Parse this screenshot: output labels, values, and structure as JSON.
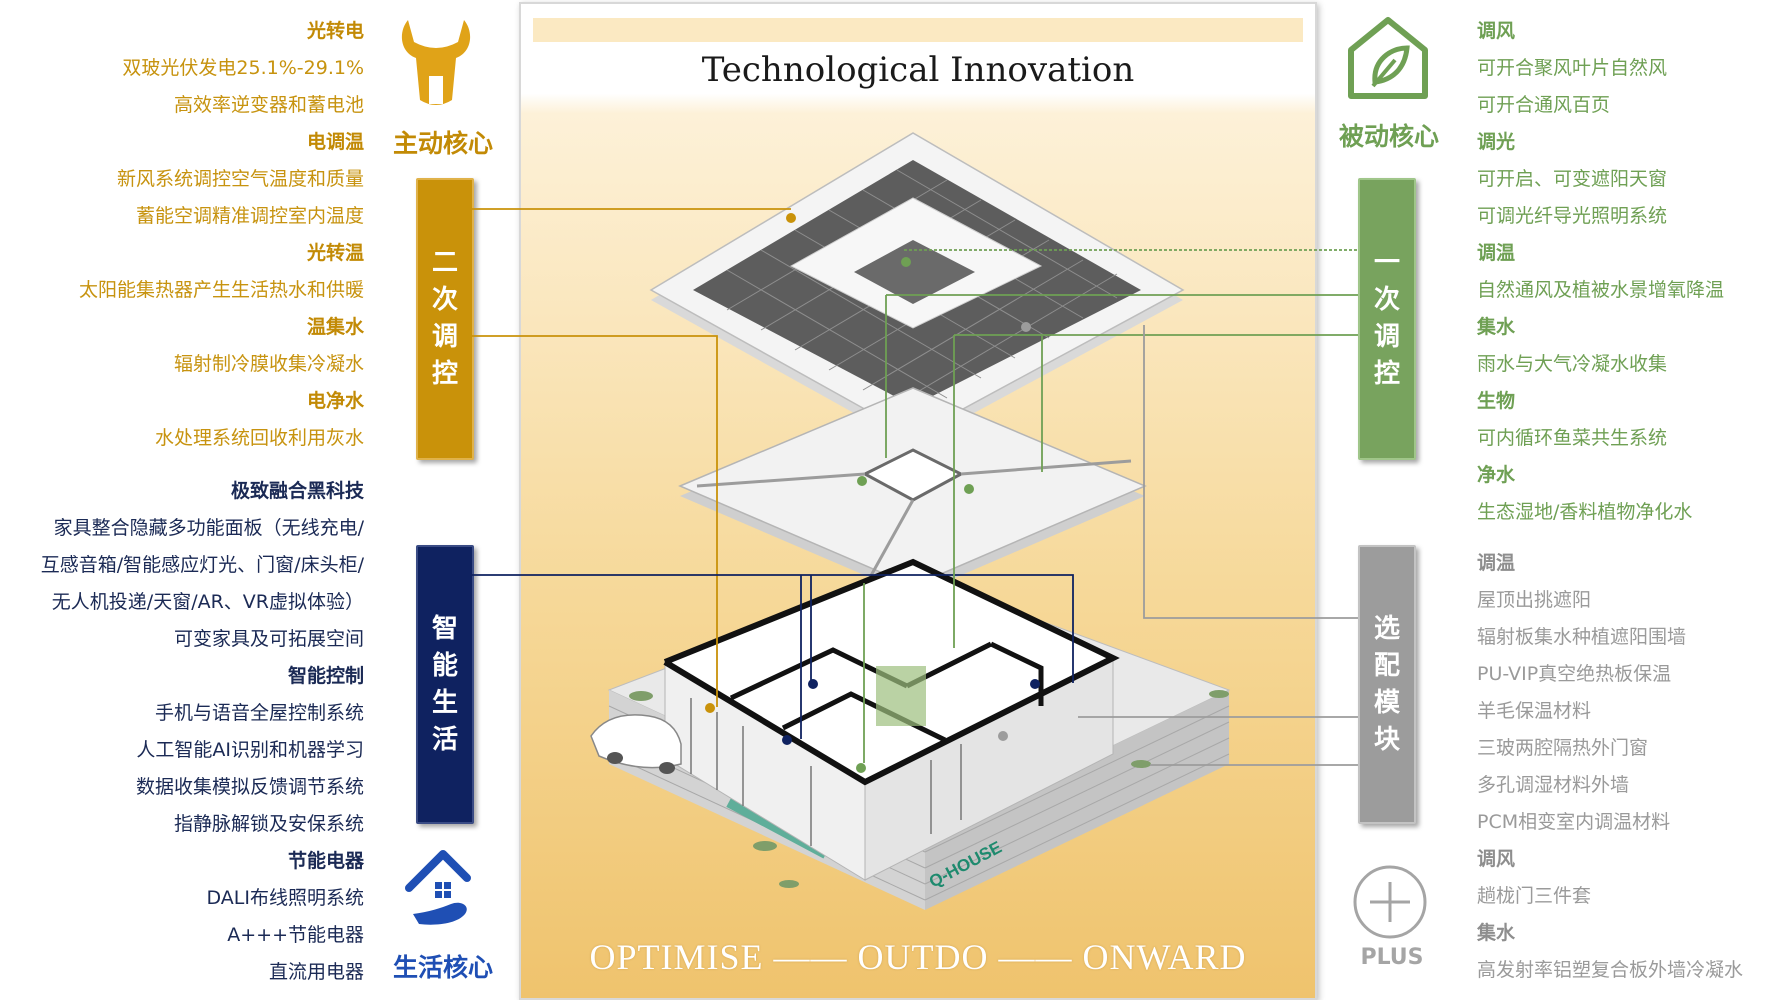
{
  "panel": {
    "title": "Technological Innovation",
    "footer": "OPTIMISE —— OUTDO —— ONWARD"
  },
  "cores": {
    "active": "主动核心",
    "passive": "被动核心",
    "life": "生活核心",
    "plus": "PLUS"
  },
  "bars": {
    "secondary": [
      "二",
      "次",
      "调",
      "控"
    ],
    "smart": [
      "智",
      "能",
      "生",
      "活"
    ],
    "primary": [
      "一",
      "次",
      "调",
      "控"
    ],
    "optional": [
      "选",
      "配",
      "模",
      "块"
    ]
  },
  "left_items": [
    {
      "text": "光转电",
      "style": "gold-h"
    },
    {
      "text": "双玻光伏发电25.1%-29.1%",
      "style": "gold"
    },
    {
      "text": "高效率逆变器和蓄电池",
      "style": "gold"
    },
    {
      "text": "电调温",
      "style": "gold-h"
    },
    {
      "text": "新风系统调控空气温度和质量",
      "style": "gold"
    },
    {
      "text": "蓄能空调精准调控室内温度",
      "style": "gold"
    },
    {
      "text": "光转温",
      "style": "gold-h"
    },
    {
      "text": "太阳能集热器产生生活热水和供暖",
      "style": "gold"
    },
    {
      "text": "温集水",
      "style": "gold-h"
    },
    {
      "text": "辐射制冷膜收集冷凝水",
      "style": "gold"
    },
    {
      "text": "电净水",
      "style": "gold-h"
    },
    {
      "text": "水处理系统回收利用灰水",
      "style": "gold"
    },
    {
      "text": "极致融合黑科技",
      "style": "navy-h"
    },
    {
      "text": "家具整合隐藏多功能面板（无线充电/",
      "style": "navy"
    },
    {
      "text": "互感音箱/智能感应灯光、门窗/床头柜/",
      "style": "navy"
    },
    {
      "text": "无人机投递/天窗/AR、VR虚拟体验）",
      "style": "navy"
    },
    {
      "text": "可变家具及可拓展空间",
      "style": "navy"
    },
    {
      "text": "智能控制",
      "style": "navy-h"
    },
    {
      "text": "手机与语音全屋控制系统",
      "style": "navy"
    },
    {
      "text": "人工智能AI识别和机器学习",
      "style": "navy"
    },
    {
      "text": "数据收集模拟反馈调节系统",
      "style": "navy"
    },
    {
      "text": "指静脉解锁及安保系统",
      "style": "navy"
    },
    {
      "text": "节能电器",
      "style": "navy-h"
    },
    {
      "text": "DALI布线照明系统",
      "style": "navy"
    },
    {
      "text": "A+++节能电器",
      "style": "navy"
    },
    {
      "text": "直流用电器",
      "style": "navy"
    }
  ],
  "right_items": [
    {
      "text": "调风",
      "style": "green-h"
    },
    {
      "text": "可开合聚风叶片自然风",
      "style": "green"
    },
    {
      "text": "可开合通风百页",
      "style": "green"
    },
    {
      "text": "调光",
      "style": "green-h"
    },
    {
      "text": "可开启、可变遮阳天窗",
      "style": "green"
    },
    {
      "text": "可调光纤导光照明系统",
      "style": "green"
    },
    {
      "text": "调温",
      "style": "green-h"
    },
    {
      "text": "自然通风及植被水景增氧降温",
      "style": "green"
    },
    {
      "text": "集水",
      "style": "green-h"
    },
    {
      "text": "雨水与大气冷凝水收集",
      "style": "green"
    },
    {
      "text": "生物",
      "style": "green-h"
    },
    {
      "text": "可内循环鱼菜共生系统",
      "style": "green"
    },
    {
      "text": "净水",
      "style": "green-h"
    },
    {
      "text": "生态湿地/香料植物净化水",
      "style": "green"
    },
    {
      "text": "调温",
      "style": "grey-h"
    },
    {
      "text": "屋顶出挑遮阳",
      "style": "grey"
    },
    {
      "text": "辐射板集水种植遮阳围墙",
      "style": "grey"
    },
    {
      "text": "PU-VIP真空绝热板保温",
      "style": "grey"
    },
    {
      "text": "羊毛保温材料",
      "style": "grey"
    },
    {
      "text": "三玻两腔隔热外门窗",
      "style": "grey"
    },
    {
      "text": "多孔调湿材料外墙",
      "style": "grey"
    },
    {
      "text": "PCM相变室内调温材料",
      "style": "grey"
    },
    {
      "text": "调风",
      "style": "grey-h"
    },
    {
      "text": "趟栊门三件套",
      "style": "grey"
    },
    {
      "text": "集水",
      "style": "grey-h"
    },
    {
      "text": "高发射率铝塑复合板外墙冷凝水",
      "style": "grey"
    }
  ],
  "building_sign": "Q-HOUSE",
  "colors": {
    "gold": "#c9920a",
    "navy": "#0f2260",
    "green": "#78a35e",
    "grey": "#9c9c9c"
  }
}
